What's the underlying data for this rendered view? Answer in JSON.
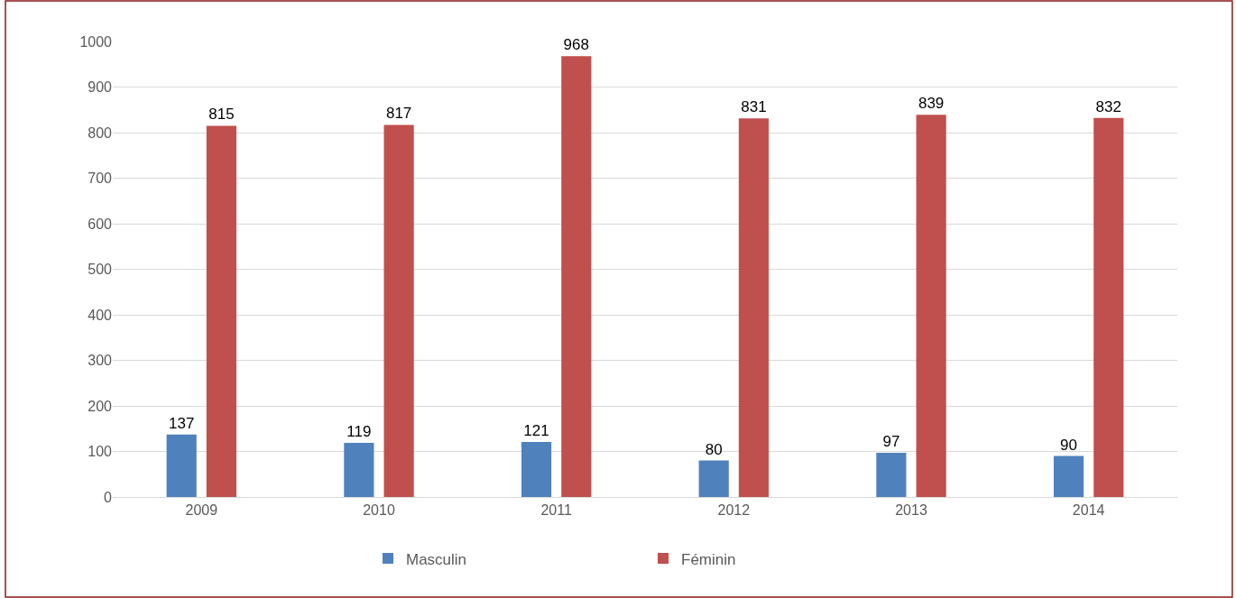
{
  "chart_data": {
    "type": "bar",
    "categories": [
      "2009",
      "2010",
      "2011",
      "2012",
      "2013",
      "2014"
    ],
    "series": [
      {
        "name": "Masculin",
        "color": "#4f81bd",
        "values": [
          137,
          119,
          121,
          80,
          97,
          90
        ]
      },
      {
        "name": "Féminin",
        "color": "#c0504d",
        "values": [
          815,
          817,
          968,
          831,
          839,
          832
        ]
      }
    ],
    "ylim": [
      0,
      1000
    ],
    "yticks": [
      0,
      100,
      200,
      300,
      400,
      500,
      600,
      700,
      800,
      900,
      1000
    ],
    "grid": "y",
    "legend": "bottom",
    "data_labels": true
  }
}
